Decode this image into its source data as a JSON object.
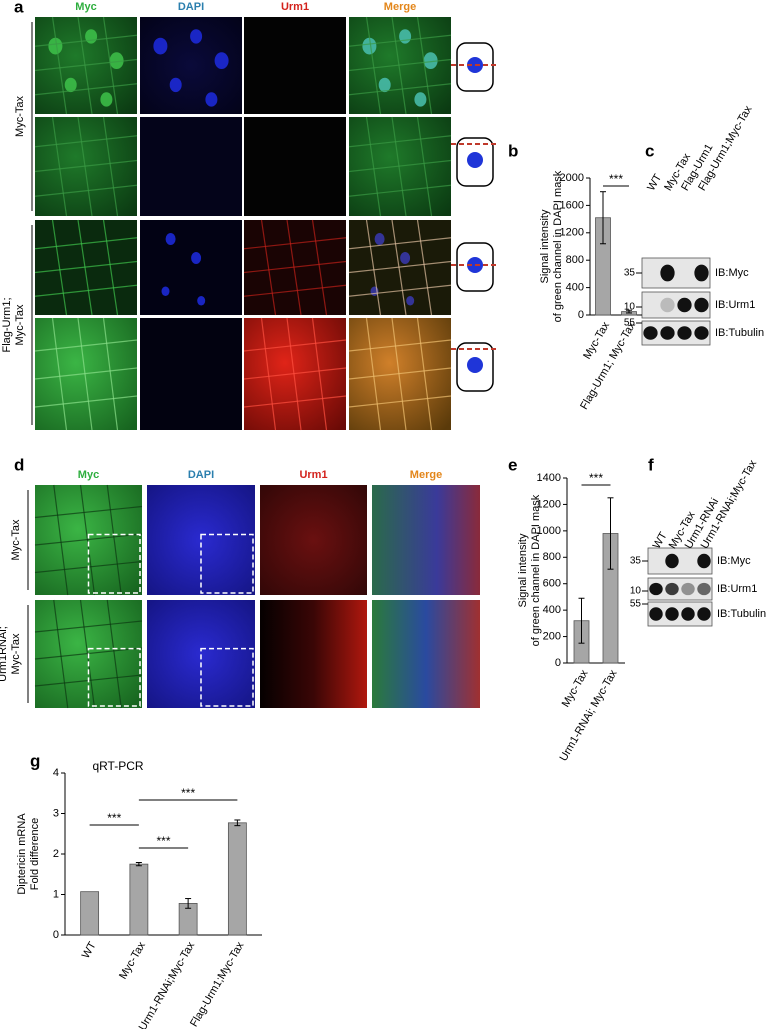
{
  "panel_labels": [
    "a",
    "b",
    "c",
    "d",
    "e",
    "f",
    "g"
  ],
  "panel_a": {
    "columns": [
      "Myc",
      "DAPI",
      "Urm1",
      "Merge"
    ],
    "column_colors": [
      "#2eae3e",
      "#2b7fae",
      "#d3221c",
      "#e3861a"
    ],
    "rows": [
      [
        "Myc-Tax"
      ],
      [
        "Flag-Urm1;",
        "Myc-Tax"
      ]
    ]
  },
  "panel_c": {
    "lanes": [
      "WT",
      "Myc-Tax",
      "Flag-Urm1",
      "Flag-Urm1;Myc-Tax"
    ],
    "blots": [
      "IB:Myc",
      "IB:Urm1",
      "IB:Tubulin"
    ],
    "markers": [
      35,
      10,
      55
    ]
  },
  "panel_d": {
    "columns": [
      "Myc",
      "DAPI",
      "Urm1",
      "Merge"
    ],
    "column_colors": [
      "#2eae3e",
      "#2b7fae",
      "#d3221c",
      "#e3861a"
    ],
    "rows": [
      [
        "Myc-Tax"
      ],
      [
        "Urm1RNAi;",
        "Myc-Tax"
      ]
    ]
  },
  "panel_f": {
    "lanes": [
      "WT",
      "Myc-Tax",
      "Urm1-RNAi",
      "Urm1-RNAi;Myc-Tax"
    ],
    "blots": [
      "IB:Myc",
      "IB:Urm1",
      "IB:Tubulin"
    ],
    "markers": [
      35,
      10,
      55
    ]
  },
  "chart_data": [
    {
      "type": "bar",
      "ylabel": [
        "Signal intensity",
        "of green channel in DAPI mask"
      ],
      "categories": [
        "Myc-Tax",
        "Flag-Urm1; Myc-Tax"
      ],
      "values": [
        1420,
        50
      ],
      "errors": [
        380,
        20
      ],
      "color": "#a6a6a6",
      "ylim": [
        0,
        2000
      ],
      "yticks": [
        0,
        400,
        800,
        1200,
        1600,
        2000
      ],
      "annotations": [
        "***"
      ]
    },
    {
      "type": "bar",
      "ylabel": [
        "Signal intensity",
        "of green channel in DAPI mask"
      ],
      "categories": [
        "Myc-Tax",
        "Urm1-RNAi; Myc-Tax"
      ],
      "values": [
        320,
        980
      ],
      "errors": [
        170,
        270
      ],
      "color": "#a6a6a6",
      "ylim": [
        0,
        1400
      ],
      "yticks": [
        0,
        200,
        400,
        600,
        800,
        1000,
        1200,
        1400
      ],
      "annotations": [
        "***"
      ]
    },
    {
      "type": "bar",
      "title": "qRT-PCR",
      "ylabel": [
        "Diptericin mRNA",
        "Fold difference"
      ],
      "categories": [
        "WT",
        "Myc-Tax",
        "Urm1-RNAi;Myc-Tax",
        "Flag-Urm1;Myc-Tax"
      ],
      "values": [
        1.07,
        1.75,
        0.78,
        2.77
      ],
      "errors": [
        null,
        0.04,
        0.12,
        0.07
      ],
      "color": "#a6a6a6",
      "ylim": [
        0,
        4
      ],
      "yticks": [
        0,
        1,
        2,
        3,
        4
      ],
      "annotations": [
        "***",
        "***",
        "***"
      ]
    }
  ]
}
